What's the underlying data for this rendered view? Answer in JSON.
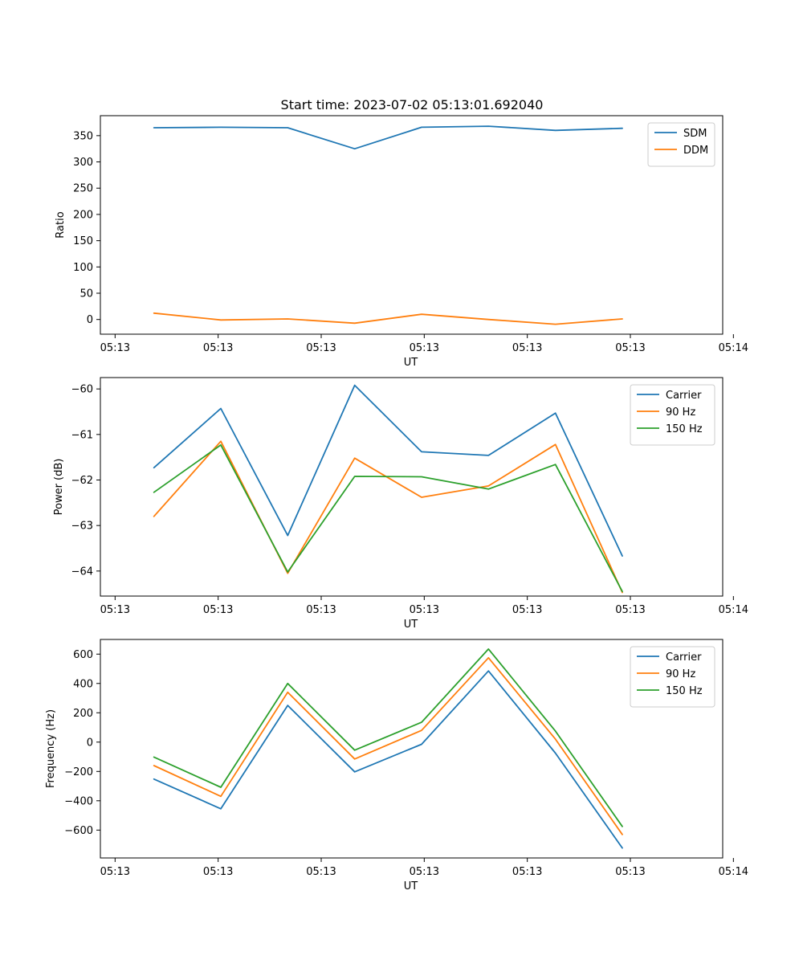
{
  "figure_title": "Start time: 2023-07-02 05:13:01.692040",
  "colors": {
    "blue": "#1f77b4",
    "orange": "#ff7f0e",
    "green": "#2ca02c"
  },
  "chart_data": [
    {
      "type": "line",
      "title": "Start time: 2023-07-02 05:13:01.692040",
      "xlabel": "UT",
      "ylabel": "Ratio",
      "x_tick_labels": [
        "05:13",
        "05:13",
        "05:13",
        "05:13",
        "05:13",
        "05:13",
        "05:14"
      ],
      "x": [
        1,
        2,
        3,
        4,
        5,
        6,
        7,
        8
      ],
      "xlim": [
        0.2,
        9.5
      ],
      "ylim": [
        -28,
        388
      ],
      "y_ticks": [
        0,
        50,
        100,
        150,
        200,
        250,
        300,
        350
      ],
      "legend_position": "upper right",
      "series": [
        {
          "name": "SDM",
          "color": "#1f77b4",
          "values": [
            365,
            366,
            365,
            325,
            366,
            368,
            360,
            364
          ]
        },
        {
          "name": "DDM",
          "color": "#ff7f0e",
          "values": [
            12,
            -1,
            1,
            -7,
            10,
            0,
            -9,
            1
          ]
        }
      ]
    },
    {
      "type": "line",
      "title": "",
      "xlabel": "UT",
      "ylabel": "Power (dB)",
      "x_tick_labels": [
        "05:13",
        "05:13",
        "05:13",
        "05:13",
        "05:13",
        "05:13",
        "05:14"
      ],
      "x": [
        1,
        2,
        3,
        4,
        5,
        6,
        7,
        8
      ],
      "xlim": [
        0.2,
        9.5
      ],
      "ylim": [
        -64.55,
        -59.75
      ],
      "y_ticks": [
        -64,
        -63,
        -62,
        -61,
        -60
      ],
      "legend_position": "upper right",
      "series": [
        {
          "name": "Carrier",
          "color": "#1f77b4",
          "values": [
            -61.73,
            -60.43,
            -63.22,
            -59.92,
            -61.38,
            -61.46,
            -60.53,
            -63.67
          ]
        },
        {
          "name": "90 Hz",
          "color": "#ff7f0e",
          "values": [
            -62.8,
            -61.15,
            -64.05,
            -61.52,
            -62.38,
            -62.13,
            -61.22,
            -64.47
          ]
        },
        {
          "name": "150 Hz",
          "color": "#2ca02c",
          "values": [
            -62.27,
            -61.23,
            -64.02,
            -61.92,
            -61.93,
            -62.2,
            -61.66,
            -64.45
          ]
        }
      ]
    },
    {
      "type": "line",
      "title": "",
      "xlabel": "UT",
      "ylabel": "Frequency (Hz)",
      "x_tick_labels": [
        "05:13",
        "05:13",
        "05:13",
        "05:13",
        "05:13",
        "05:13",
        "05:14"
      ],
      "x": [
        1,
        2,
        3,
        4,
        5,
        6,
        7,
        8
      ],
      "xlim": [
        0.2,
        9.5
      ],
      "ylim": [
        -790,
        700
      ],
      "y_ticks": [
        -600,
        -400,
        -200,
        0,
        200,
        400,
        600
      ],
      "legend_position": "upper right",
      "series": [
        {
          "name": "Carrier",
          "color": "#1f77b4",
          "values": [
            -252,
            -455,
            250,
            -203,
            -15,
            485,
            -75,
            -722
          ]
        },
        {
          "name": "90 Hz",
          "color": "#ff7f0e",
          "values": [
            -160,
            -370,
            340,
            -115,
            80,
            575,
            20,
            -630
          ]
        },
        {
          "name": "150 Hz",
          "color": "#2ca02c",
          "values": [
            -102,
            -308,
            400,
            -55,
            135,
            635,
            75,
            -575
          ]
        }
      ]
    }
  ]
}
